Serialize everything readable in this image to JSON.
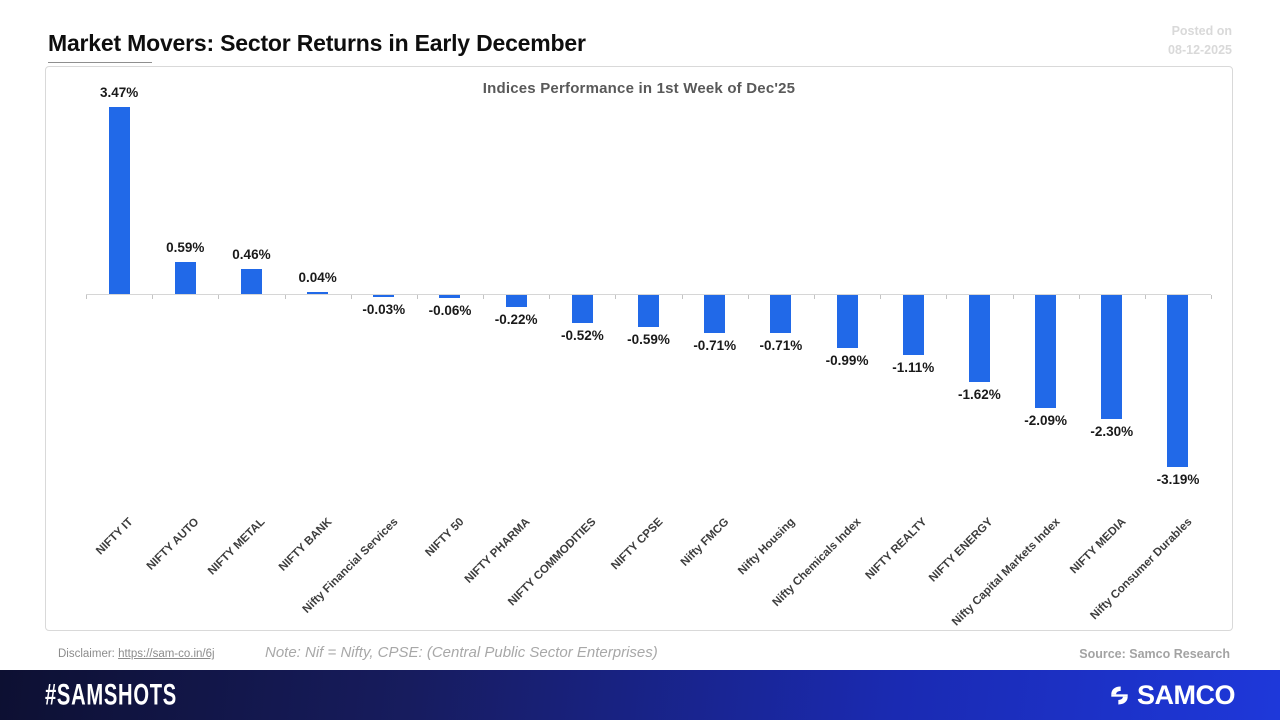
{
  "header": {
    "title": "Market Movers: Sector Returns in Early December",
    "posted_label": "Posted on",
    "posted_date": "08-12-2025"
  },
  "chart_data": {
    "type": "bar",
    "title": "Indices Performance in 1st Week of Dec'25",
    "categories": [
      "NIFTY IT",
      "NIFTY AUTO",
      "NIFTY METAL",
      "NIFTY BANK",
      "Nifty Financial Services",
      "NIFTY 50",
      "NIFTY PHARMA",
      "NIFTY COMMODITIES",
      "NIFTY CPSE",
      "Nifty FMCG",
      "Nifty Housing",
      "Nifty Chemicals Index",
      "NIFTY REALTY",
      "NIFTY ENERGY",
      "Nifty Capital Markets Index",
      "NIFTY MEDIA",
      "Nifty Consumer Durables"
    ],
    "values": [
      3.47,
      0.59,
      0.46,
      0.04,
      -0.03,
      -0.06,
      -0.22,
      -0.52,
      -0.59,
      -0.71,
      -0.71,
      -0.99,
      -1.11,
      -1.62,
      -2.09,
      -2.3,
      -3.19
    ],
    "value_labels": [
      "3.47%",
      "0.59%",
      "0.46%",
      "0.04%",
      "-0.03%",
      "-0.06%",
      "-0.22%",
      "-0.52%",
      "-0.59%",
      "-0.71%",
      "-0.71%",
      "-0.99%",
      "-1.11%",
      "-1.62%",
      "-2.09%",
      "-2.30%",
      "-3.19%"
    ],
    "xlabel": "",
    "ylabel": "",
    "ylim": [
      -3.6,
      3.8
    ],
    "grid": false,
    "legend": false,
    "bar_color": "#2169E8",
    "axis_color": "#d6d6d6"
  },
  "footer": {
    "disclaimer_label": "Disclaimer: ",
    "disclaimer_link": "https://sam-co.in/6j",
    "note": "Note: Nif = Nifty, CPSE: (Central Public Sector Enterprises)",
    "source": "Source: Samco Research"
  },
  "bottom_bar": {
    "hashtag": "#SAMSHOTS",
    "brand": "SAMCO",
    "gradient_left": "#0d1032",
    "gradient_mid": "#1a2ab2",
    "gradient_right": "#1e38da"
  }
}
